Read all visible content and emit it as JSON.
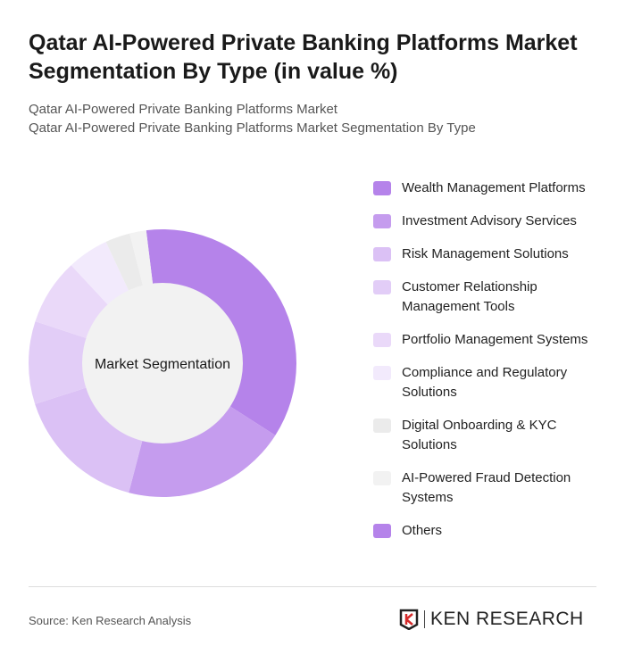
{
  "title": "Qatar AI-Powered Private Banking Platforms Market Segmentation By Type (in value %)",
  "subtitle1": "Qatar AI-Powered Private Banking Platforms Market",
  "subtitle2": "Qatar AI-Powered Private Banking Platforms Market Segmentation By Type",
  "source": "Source: Ken Research Analysis",
  "logo_text": "KEN RESEARCH",
  "chart_data": {
    "type": "pie",
    "donut": true,
    "center_label": "Market Segmentation",
    "legend_position": "right",
    "categories": [
      "Wealth Management Platforms",
      "Investment Advisory Services",
      "Risk Management Solutions",
      "Customer Relationship Management Tools",
      "Portfolio Management Systems",
      "Compliance and Regulatory Solutions",
      "Digital Onboarding & KYC Solutions",
      "AI-Powered Fraud Detection Systems",
      "Others"
    ],
    "values": [
      36,
      20,
      16,
      10,
      8,
      5,
      3,
      2,
      0
    ],
    "colors": [
      "#b583ea",
      "#c59cee",
      "#dbc1f5",
      "#e2cdf7",
      "#ead9f9",
      "#f2eafc",
      "#ebebeb",
      "#f2f2f2",
      "#b583ea"
    ]
  }
}
